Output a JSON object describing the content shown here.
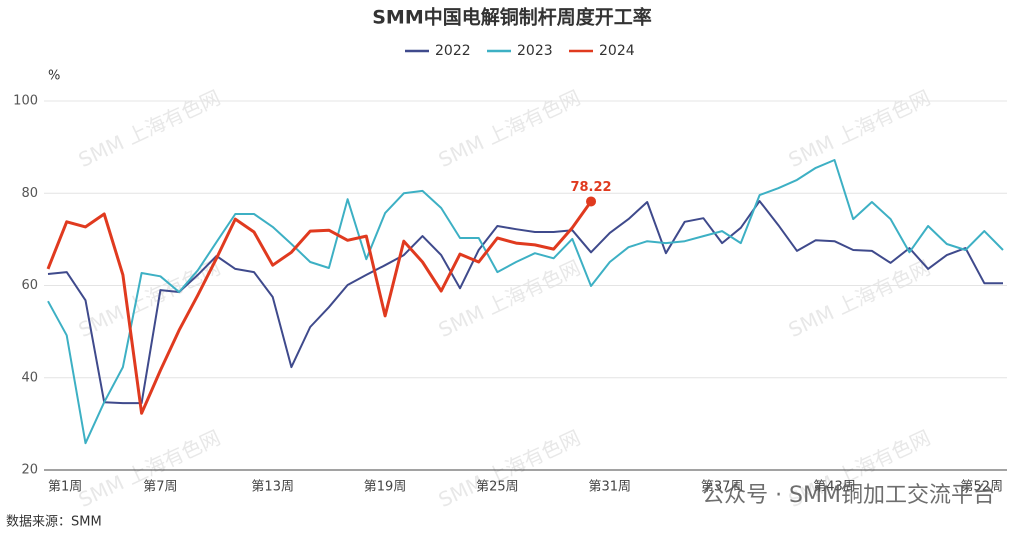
{
  "chart_data": {
    "type": "line",
    "title": "SMM中国电解铜制杆周度开工率",
    "y_unit": "%",
    "source": "数据来源：SMM",
    "watermark": "SMM 上海有色网",
    "overlay": "公众号 · SMM铜加工交流平台",
    "categories": [
      "第1周",
      null,
      null,
      null,
      null,
      null,
      "第7周",
      null,
      null,
      null,
      null,
      null,
      "第13周",
      null,
      null,
      null,
      null,
      null,
      "第19周",
      null,
      null,
      null,
      null,
      null,
      "第25周",
      null,
      null,
      null,
      null,
      null,
      "第31周",
      null,
      null,
      null,
      null,
      null,
      "第37周",
      null,
      null,
      null,
      null,
      null,
      "第43周",
      null,
      null,
      null,
      null,
      null,
      null,
      null,
      null,
      "第52周"
    ],
    "ylim": [
      20,
      100
    ],
    "yticks": [
      20,
      40,
      60,
      80,
      100
    ],
    "grid": true,
    "series": [
      {
        "name": "2022",
        "color": "#3f4a8c",
        "values": [
          62.5,
          62.9,
          56.8,
          34.7,
          34.5,
          34.5,
          59.0,
          58.6,
          62.3,
          66.4,
          63.6,
          62.9,
          57.5,
          42.3,
          51.0,
          55.3,
          60.1,
          62.3,
          64.4,
          66.6,
          70.7,
          66.6,
          59.4,
          67.7,
          72.9,
          72.2,
          71.6,
          71.6,
          72.0,
          67.2,
          71.4,
          74.4,
          78.1,
          67.0,
          73.8,
          74.6,
          69.2,
          72.5,
          78.3,
          73.1,
          67.5,
          69.8,
          69.6,
          67.7,
          67.5,
          64.9,
          68.1,
          63.6,
          66.6,
          68.1,
          60.5,
          60.5
        ]
      },
      {
        "name": "2023",
        "color": "#3db0c4",
        "values": [
          56.6,
          49.2,
          25.8,
          34.7,
          42.3,
          62.7,
          62.0,
          58.6,
          63.3,
          69.4,
          75.5,
          75.5,
          72.7,
          69.0,
          65.1,
          63.8,
          78.7,
          65.7,
          75.7,
          80.0,
          80.5,
          76.8,
          70.3,
          70.3,
          62.9,
          65.1,
          67.0,
          65.9,
          70.1,
          59.9,
          65.1,
          68.3,
          69.6,
          69.2,
          69.6,
          70.7,
          71.8,
          69.2,
          79.6,
          81.1,
          82.9,
          85.5,
          87.2,
          74.4,
          78.1,
          74.4,
          67.2,
          72.9,
          69.0,
          67.7,
          71.8,
          67.7
        ]
      },
      {
        "name": "2024",
        "color": "#e03a1f",
        "values": [
          63.6,
          73.8,
          72.7,
          75.5,
          62.3,
          32.3,
          41.6,
          50.3,
          57.9,
          65.9,
          74.4,
          71.6,
          64.4,
          67.2,
          71.8,
          72.0,
          69.8,
          70.7,
          53.4,
          69.6,
          65.1,
          58.8,
          66.8,
          65.1,
          70.3,
          69.2,
          68.8,
          67.9,
          72.5,
          78.22,
          null,
          null,
          null,
          null,
          null,
          null,
          null,
          null,
          null,
          null,
          null,
          null,
          null,
          null,
          null,
          null,
          null,
          null,
          null,
          null,
          null,
          null
        ]
      }
    ]
  }
}
